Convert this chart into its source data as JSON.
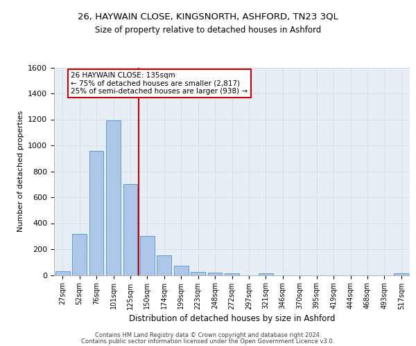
{
  "title": "26, HAYWAIN CLOSE, KINGSNORTH, ASHFORD, TN23 3QL",
  "subtitle": "Size of property relative to detached houses in Ashford",
  "xlabel": "Distribution of detached houses by size in Ashford",
  "ylabel": "Number of detached properties",
  "bar_labels": [
    "27sqm",
    "52sqm",
    "76sqm",
    "101sqm",
    "125sqm",
    "150sqm",
    "174sqm",
    "199sqm",
    "223sqm",
    "248sqm",
    "272sqm",
    "297sqm",
    "321sqm",
    "346sqm",
    "370sqm",
    "395sqm",
    "419sqm",
    "444sqm",
    "468sqm",
    "493sqm",
    "517sqm"
  ],
  "bar_values": [
    30,
    320,
    960,
    1190,
    700,
    300,
    150,
    70,
    25,
    20,
    15,
    0,
    15,
    0,
    0,
    0,
    0,
    0,
    0,
    0,
    15
  ],
  "bar_color": "#aec6e8",
  "bar_edgecolor": "#5b9bd5",
  "vline_pos": 4.48,
  "highlight_label": "26 HAYWAIN CLOSE: 135sqm",
  "annotation_line1": "← 75% of detached houses are smaller (2,817)",
  "annotation_line2": "25% of semi-detached houses are larger (938) →",
  "vline_color": "#cc0000",
  "ylim": [
    0,
    1600
  ],
  "yticks": [
    0,
    200,
    400,
    600,
    800,
    1000,
    1200,
    1400,
    1600
  ],
  "grid_color": "#d0d8e4",
  "background_color": "#e8eef5",
  "footer_line1": "Contains HM Land Registry data © Crown copyright and database right 2024.",
  "footer_line2": "Contains public sector information licensed under the Open Government Licence v3.0."
}
